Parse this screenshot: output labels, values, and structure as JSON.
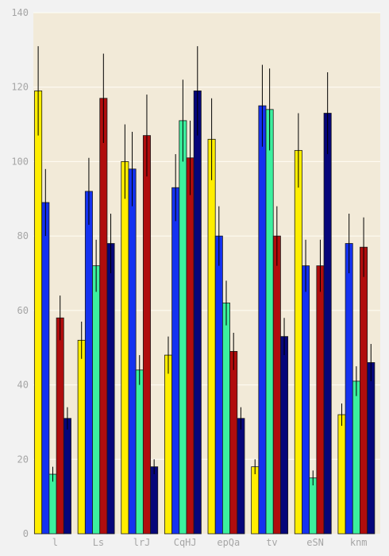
{
  "chart_data": {
    "type": "bar",
    "categories": [
      "l",
      "Ls",
      "lrJ",
      "CqHJ",
      "epQa",
      "tv",
      "eSN",
      "knm"
    ],
    "series": [
      {
        "color": "#ffee00",
        "values": [
          119,
          52,
          100,
          48,
          106,
          18,
          103,
          32
        ],
        "errors": [
          12,
          5,
          10,
          5,
          11,
          2,
          10,
          3
        ]
      },
      {
        "color": "#1432f0",
        "values": [
          89,
          92,
          98,
          93,
          80,
          115,
          72,
          78
        ],
        "errors": [
          9,
          9,
          10,
          9,
          8,
          11,
          7,
          8
        ]
      },
      {
        "color": "#3cf09e",
        "values": [
          16,
          72,
          44,
          111,
          62,
          114,
          15,
          41
        ],
        "errors": [
          2,
          7,
          4,
          11,
          6,
          11,
          2,
          4
        ]
      },
      {
        "color": "#b00d0d",
        "values": [
          58,
          117,
          107,
          101,
          49,
          80,
          72,
          77
        ],
        "errors": [
          6,
          12,
          11,
          10,
          5,
          8,
          7,
          8
        ]
      },
      {
        "color": "#06067a",
        "values": [
          31,
          78,
          18,
          119,
          31,
          53,
          113,
          46
        ],
        "errors": [
          3,
          8,
          2,
          12,
          3,
          5,
          11,
          5
        ]
      }
    ],
    "ylim": [
      0,
      140
    ],
    "yticks": [
      0,
      20,
      40,
      60,
      80,
      100,
      120,
      140
    ],
    "grid": true,
    "plot_background": "#f2ead8"
  }
}
